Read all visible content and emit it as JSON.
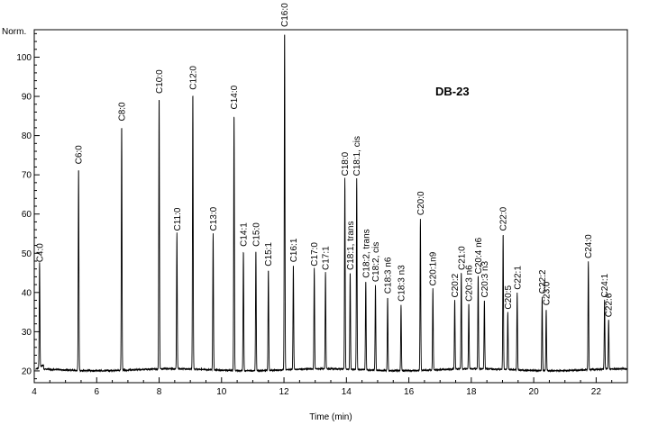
{
  "chart_data": {
    "type": "line",
    "xlabel": "Time (min)",
    "ylabel": "Norm.",
    "annotation": "DB-23",
    "xlim": [
      4,
      23
    ],
    "ylim": [
      17,
      107
    ],
    "x_ticks": [
      "4",
      "6",
      "8",
      "10",
      "12",
      "14",
      "16",
      "18",
      "20",
      "22"
    ],
    "y_ticks": [
      "20",
      "30",
      "40",
      "50",
      "60",
      "70",
      "80",
      "90",
      "100"
    ],
    "baseline": 20.3,
    "peaks": [
      {
        "label": "C4:0",
        "t": 4.17,
        "h": 47
      },
      {
        "label": "C6:0",
        "t": 5.42,
        "h": 72
      },
      {
        "label": "C8:0",
        "t": 6.8,
        "h": 83
      },
      {
        "label": "C10:0",
        "t": 8.0,
        "h": 90
      },
      {
        "label": "C11:0",
        "t": 8.57,
        "h": 55
      },
      {
        "label": "C12:0",
        "t": 9.08,
        "h": 91
      },
      {
        "label": "C13:0",
        "t": 9.73,
        "h": 55
      },
      {
        "label": "C14:0",
        "t": 10.4,
        "h": 86
      },
      {
        "label": "C14:1",
        "t": 10.7,
        "h": 51
      },
      {
        "label": "C15:0",
        "t": 11.1,
        "h": 51
      },
      {
        "label": "C15:1",
        "t": 11.5,
        "h": 46
      },
      {
        "label": "C16:0",
        "t": 12.02,
        "h": 107
      },
      {
        "label": "C16:1",
        "t": 12.3,
        "h": 47
      },
      {
        "label": "C17:0",
        "t": 12.97,
        "h": 46
      },
      {
        "label": "C17:1",
        "t": 13.33,
        "h": 45
      },
      {
        "label": "C18:0",
        "t": 13.95,
        "h": 69
      },
      {
        "label": "C18:1, trans",
        "t": 14.12,
        "h": 45
      },
      {
        "label": "C18:1, cis",
        "t": 14.33,
        "h": 69
      },
      {
        "label": "C18:2, trans",
        "t": 14.62,
        "h": 43
      },
      {
        "label": "C18:2, cis",
        "t": 14.93,
        "h": 42
      },
      {
        "label": "C18:3 n6",
        "t": 15.32,
        "h": 39
      },
      {
        "label": "C18:3 n3",
        "t": 15.75,
        "h": 37
      },
      {
        "label": "C20:0",
        "t": 16.37,
        "h": 59
      },
      {
        "label": "C20:1n9",
        "t": 16.77,
        "h": 41
      },
      {
        "label": "C20:2",
        "t": 17.47,
        "h": 38
      },
      {
        "label": "C21:0",
        "t": 17.68,
        "h": 45
      },
      {
        "label": "C20:3 n6",
        "t": 17.92,
        "h": 37
      },
      {
        "label": "C20:4 n6",
        "t": 18.22,
        "h": 44
      },
      {
        "label": "C20:3 n3",
        "t": 18.42,
        "h": 38
      },
      {
        "label": "C22:0",
        "t": 19.02,
        "h": 55
      },
      {
        "label": "C20:5",
        "t": 19.17,
        "h": 35
      },
      {
        "label": "C22:1",
        "t": 19.47,
        "h": 40
      },
      {
        "label": "C22:2",
        "t": 20.27,
        "h": 39
      },
      {
        "label": "C23:0",
        "t": 20.4,
        "h": 36
      },
      {
        "label": "C24:0",
        "t": 21.75,
        "h": 48
      },
      {
        "label": "C24:1",
        "t": 22.27,
        "h": 38
      },
      {
        "label": "C22:6",
        "t": 22.4,
        "h": 33
      }
    ]
  }
}
